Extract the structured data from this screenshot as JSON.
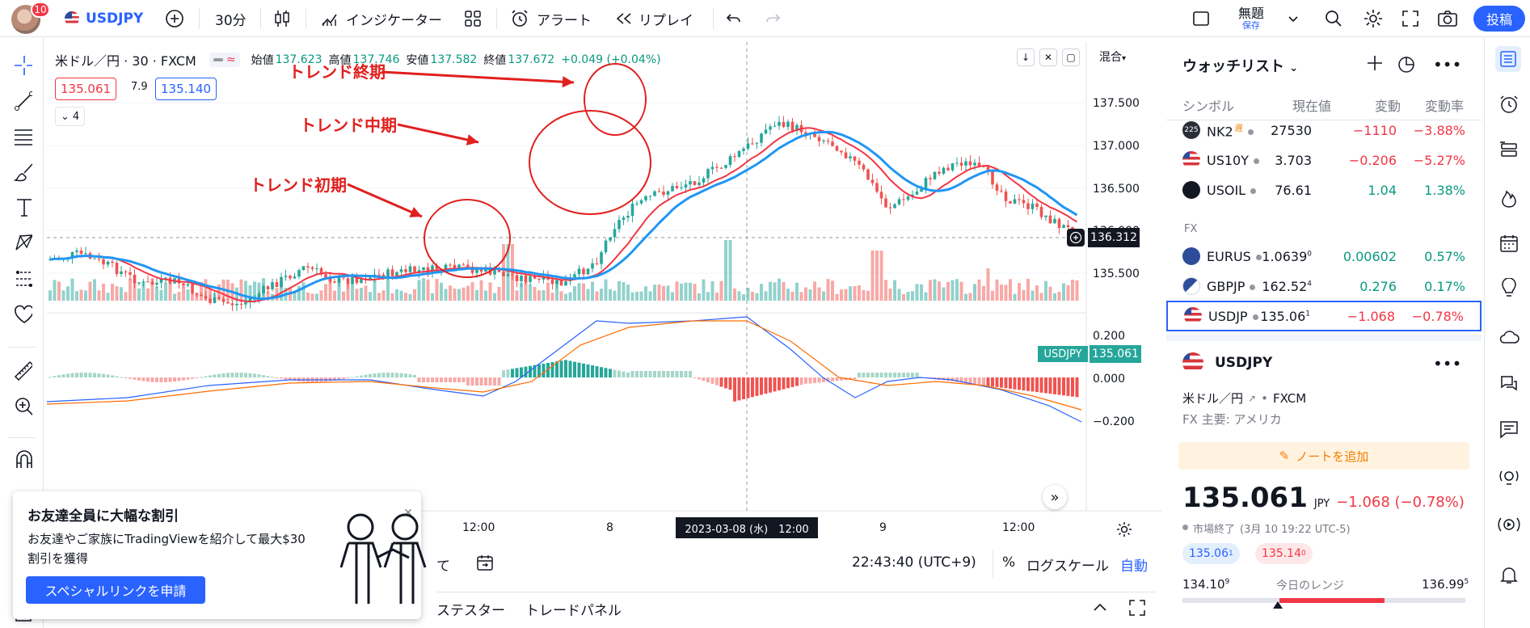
{
  "topbar": {
    "notif_count": "10",
    "symbol": "USDJPY",
    "interval": "30分",
    "indicators": "インジケーター",
    "alert": "アラート",
    "replay": "リプレイ",
    "layout_name": "無題",
    "layout_saved": "保存",
    "publish": "投稿"
  },
  "legend": {
    "title": "米ドル／円 · 30 · FXCM",
    "open_label": "始値",
    "open": "137.623",
    "high_label": "高値",
    "high": "137.746",
    "low_label": "安値",
    "low": "137.582",
    "close_label": "終値",
    "close": "137.672",
    "change": "+0.049 (+0.04%)",
    "bid": "135.061",
    "spread": "7.9",
    "ask": "135.140",
    "collapse_count": "4",
    "scale_mode": "混合"
  },
  "annotations": {
    "early": "トレンド初期",
    "mid": "トレンド中期",
    "late": "トレンド終期"
  },
  "price_axis": {
    "ticks": [
      "137.500",
      "137.000",
      "136.500",
      "136.000",
      "135.500"
    ],
    "crosshair_price": "136.312",
    "last_label": "USDJPY",
    "last_price": "135.061",
    "macd_ticks": [
      "0.200",
      "0.000",
      "−0.200"
    ]
  },
  "time_axis": {
    "ticks": [
      "12:00",
      "8",
      "9",
      "12:00"
    ],
    "crosshair_time": "2023-03-08 (水)　12:00"
  },
  "bottom": {
    "clock": "22:43:40 (UTC+9)",
    "percent": "%",
    "log": "ログスケール",
    "auto": "自動",
    "partial_left": "て",
    "tab_tester": "ステスター",
    "tab_trade": "トレードパネル"
  },
  "popup": {
    "title": "お友達全員に大幅な割引",
    "line1": "お友達やご家族にTradingViewを紹介して最大$30",
    "line2": "割引を獲得",
    "button": "スペシャルリンクを申請"
  },
  "watchlist": {
    "title": "ウォッチリスト",
    "col_symbol": "シンボル",
    "col_last": "現在値",
    "col_chg": "変動",
    "col_pct": "変動率",
    "section_fx": "FX",
    "rows": [
      {
        "sym": "NK2",
        "badge": "225",
        "tag": "遅",
        "last": "27530",
        "chg": "−1110",
        "pct": "−3.88%",
        "dir": "down"
      },
      {
        "sym": "US10Y",
        "last": "3.703",
        "chg": "−0.206",
        "pct": "−5.27%",
        "dir": "down"
      },
      {
        "sym": "USOIL",
        "last": "76.61",
        "chg": "1.04",
        "pct": "1.38%",
        "dir": "up"
      },
      {
        "sym": "EURUS",
        "last": "1.0639",
        "last_sup": "0",
        "chg": "0.00602",
        "pct": "0.57%",
        "dir": "up"
      },
      {
        "sym": "GBPJP",
        "last": "162.52",
        "last_sup": "4",
        "chg": "0.276",
        "pct": "0.17%",
        "dir": "up"
      },
      {
        "sym": "USDJP",
        "last": "135.06",
        "last_sup": "1",
        "chg": "−1.068",
        "pct": "−0.78%",
        "dir": "down"
      }
    ]
  },
  "detail": {
    "symbol": "USDJPY",
    "name": "米ドル／円",
    "exchange": "FXCM",
    "category": "FX 主要: アメリカ",
    "note": "ノートを追加",
    "price": "135.061",
    "currency": "JPY",
    "change": "−1.068 (−0.78%)",
    "status": "市場終了",
    "status_time": "(3月 10 19:22 UTC-5)",
    "bid": "135.06",
    "bid_sup": "1",
    "ask": "135.14",
    "ask_sup": "0",
    "range_low": "134.10",
    "range_low_sup": "9",
    "range_label": "今日のレンジ",
    "range_high": "136.99",
    "range_high_sup": "5"
  },
  "colors": {
    "up": "#26a69a",
    "down": "#ef5350",
    "accent": "#2962ff",
    "ma_blue": "#2196f3",
    "ma_red": "#f23645",
    "annot": "#e0201e"
  }
}
